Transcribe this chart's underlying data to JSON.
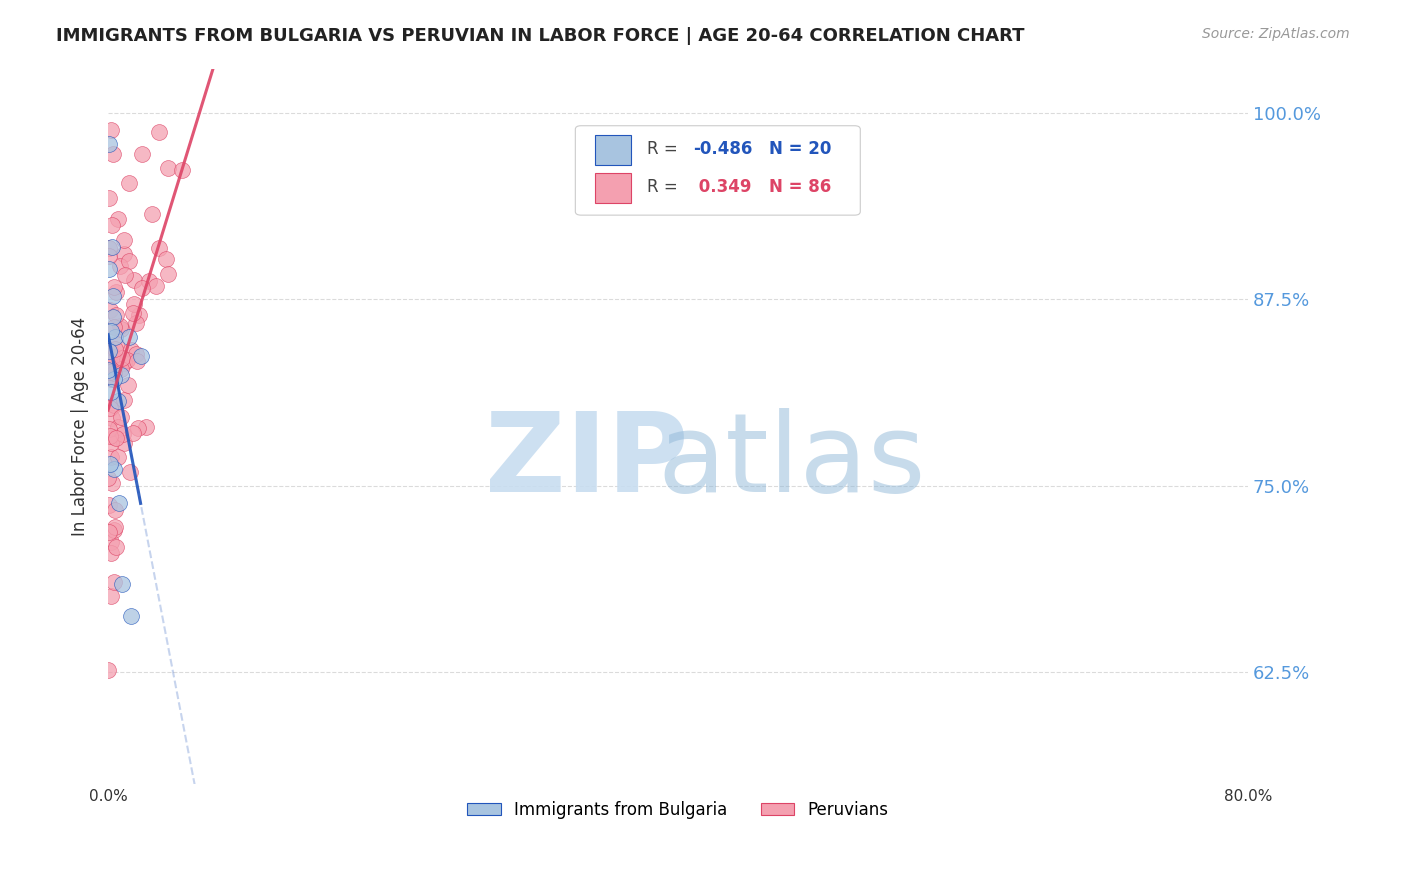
{
  "title": "IMMIGRANTS FROM BULGARIA VS PERUVIAN IN LABOR FORCE | AGE 20-64 CORRELATION CHART",
  "source": "Source: ZipAtlas.com",
  "ylabel": "In Labor Force | Age 20-64",
  "xlim": [
    0.0,
    0.8
  ],
  "ylim": [
    0.55,
    1.03
  ],
  "yticks": [
    0.625,
    0.75,
    0.875,
    1.0
  ],
  "ytick_labels": [
    "62.5%",
    "75.0%",
    "87.5%",
    "100.0%"
  ],
  "xticks": [
    0.0,
    0.1,
    0.2,
    0.3,
    0.4,
    0.5,
    0.6,
    0.7,
    0.8
  ],
  "xtick_labels": [
    "0.0%",
    "",
    "",
    "",
    "",
    "",
    "",
    "",
    "80.0%"
  ],
  "legend_R_blue": "-0.486",
  "legend_N_blue": "20",
  "legend_R_pink": " 0.349",
  "legend_N_pink": "86",
  "bulgaria_color": "#a8c4e0",
  "peruvian_color": "#f4a0b0",
  "blue_line_color": "#2255bb",
  "pink_line_color": "#dd4466",
  "watermark_color": "#c8ddf0",
  "bg_color": "#ffffff",
  "grid_color": "#cccccc",
  "right_label_color": "#5599dd"
}
